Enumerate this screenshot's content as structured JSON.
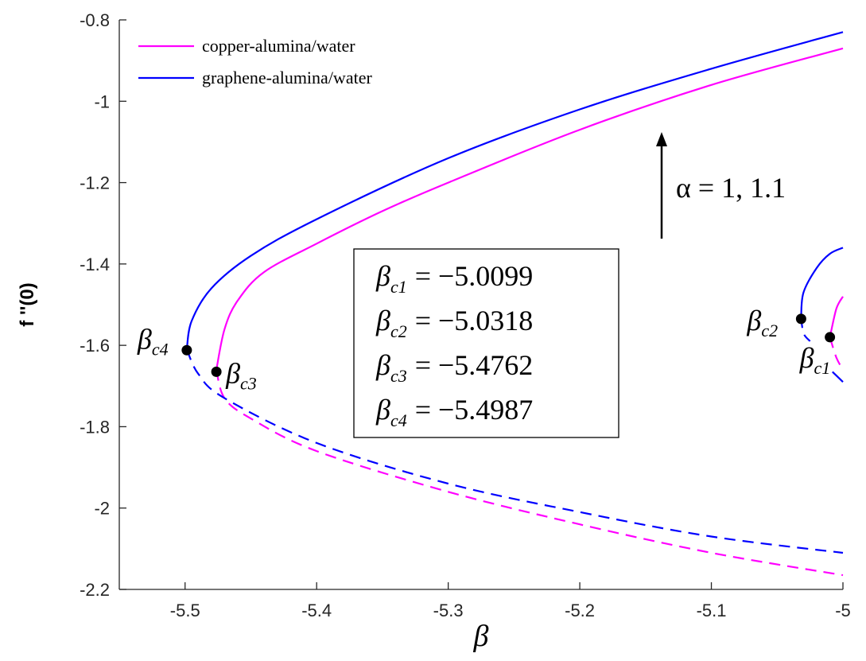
{
  "chart_data": {
    "type": "line",
    "xlabel": "β",
    "ylabel": "f ''(0)",
    "xlim": [
      -5.55,
      -5.0
    ],
    "ylim": [
      -2.2,
      -0.8
    ],
    "xticks": [
      "-5.5",
      "-5.4",
      "-5.3",
      "-5.2",
      "-5.1",
      "-5"
    ],
    "yticks": [
      "-0.8",
      "-1",
      "-1.2",
      "-1.4",
      "-1.6",
      "-1.8",
      "-2",
      "-2.2"
    ],
    "legend_position": "top-left",
    "grid": false,
    "colors": {
      "copper": "#ff00ff",
      "graphene": "#0000ff"
    },
    "series": [
      {
        "name": "copper-alumina/water",
        "color": "#ff00ff",
        "branches": [
          {
            "style": "solid",
            "x": [
              -5.0,
              -5.1,
              -5.2,
              -5.3,
              -5.35,
              -5.4,
              -5.44,
              -5.46,
              -5.47,
              -5.4762
            ],
            "y": [
              -0.87,
              -0.96,
              -1.07,
              -1.2,
              -1.27,
              -1.35,
              -1.42,
              -1.49,
              -1.56,
              -1.66
            ]
          },
          {
            "style": "dashed",
            "x": [
              -5.4762,
              -5.47,
              -5.45,
              -5.4,
              -5.3,
              -5.2,
              -5.1,
              -5.0
            ],
            "y": [
              -1.66,
              -1.73,
              -1.78,
              -1.86,
              -1.96,
              -2.04,
              -2.11,
              -2.165
            ]
          },
          {
            "style": "solid",
            "x": [
              -5.0,
              -5.005,
              -5.0099
            ],
            "y": [
              -1.48,
              -1.51,
              -1.58
            ]
          },
          {
            "style": "dashed",
            "x": [
              -5.0099,
              -5.005,
              -5.0
            ],
            "y": [
              -1.58,
              -1.63,
              -1.66
            ]
          }
        ]
      },
      {
        "name": "graphene-alumina/water",
        "color": "#0000ff",
        "branches": [
          {
            "style": "solid",
            "x": [
              -5.0,
              -5.1,
              -5.2,
              -5.3,
              -5.4,
              -5.45,
              -5.48,
              -5.495,
              -5.4987
            ],
            "y": [
              -0.83,
              -0.92,
              -1.02,
              -1.14,
              -1.29,
              -1.38,
              -1.46,
              -1.54,
              -1.61
            ]
          },
          {
            "style": "dashed",
            "x": [
              -5.4987,
              -5.49,
              -5.47,
              -5.4,
              -5.3,
              -5.2,
              -5.1,
              -5.0
            ],
            "y": [
              -1.61,
              -1.67,
              -1.73,
              -1.84,
              -1.94,
              -2.01,
              -2.07,
              -2.11
            ]
          },
          {
            "style": "solid",
            "x": [
              -5.0,
              -5.01,
              -5.02,
              -5.03,
              -5.0318
            ],
            "y": [
              -1.36,
              -1.375,
              -1.41,
              -1.47,
              -1.53
            ]
          },
          {
            "style": "dashed",
            "x": [
              -5.0318,
              -5.03,
              -5.025
            ],
            "y": [
              -1.53,
              -1.57,
              -1.59
            ]
          },
          {
            "style": "solid",
            "x": [
              -5.008,
              -5.0
            ],
            "y": [
              -1.665,
              -1.69
            ]
          }
        ]
      }
    ],
    "critical_points": [
      {
        "label": "c1",
        "x": -5.0099,
        "y": -1.58
      },
      {
        "label": "c2",
        "x": -5.0318,
        "y": -1.535
      },
      {
        "label": "c3",
        "x": -5.4762,
        "y": -1.665
      },
      {
        "label": "c4",
        "x": -5.4987,
        "y": -1.612
      }
    ],
    "annotations": {
      "alpha_text": "α = 1, 1.1",
      "box": [
        {
          "sub": "c1",
          "value": "−5.0099"
        },
        {
          "sub": "c2",
          "value": "−5.0318"
        },
        {
          "sub": "c3",
          "value": "−5.4762"
        },
        {
          "sub": "c4",
          "value": "−5.4987"
        }
      ],
      "beta_symbol": "β",
      "equals": "="
    }
  }
}
